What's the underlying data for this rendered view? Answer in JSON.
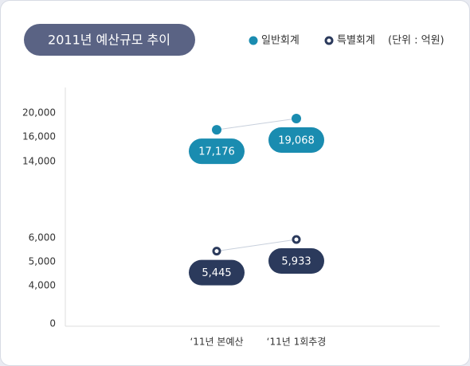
{
  "chart_data": {
    "type": "line",
    "title": "2011년 예산규모 추이",
    "unit_label": "(단위 : 억원)",
    "categories": [
      "‘11년 본예산",
      "‘11년 1회추경"
    ],
    "series": [
      {
        "name": "일반회계",
        "color": "#1a8cb0",
        "marker": "filled",
        "values": [
          17176,
          19068
        ],
        "value_labels": [
          "17,176",
          "19,068"
        ]
      },
      {
        "name": "특별회계",
        "color": "#2b3a5c",
        "marker": "hollow",
        "values": [
          5445,
          5933
        ],
        "value_labels": [
          "5,445",
          "5,933"
        ]
      }
    ],
    "yticks": [
      0,
      {
        "value": 4000,
        "label": "4,000"
      },
      {
        "value": 5000,
        "label": "5,000"
      },
      {
        "value": 6000,
        "label": "6,000"
      },
      {
        "value": 14000,
        "label": "14,000"
      },
      {
        "value": 16000,
        "label": "16,000"
      },
      {
        "value": 20000,
        "label": "20,000"
      }
    ],
    "axis_break": true
  }
}
